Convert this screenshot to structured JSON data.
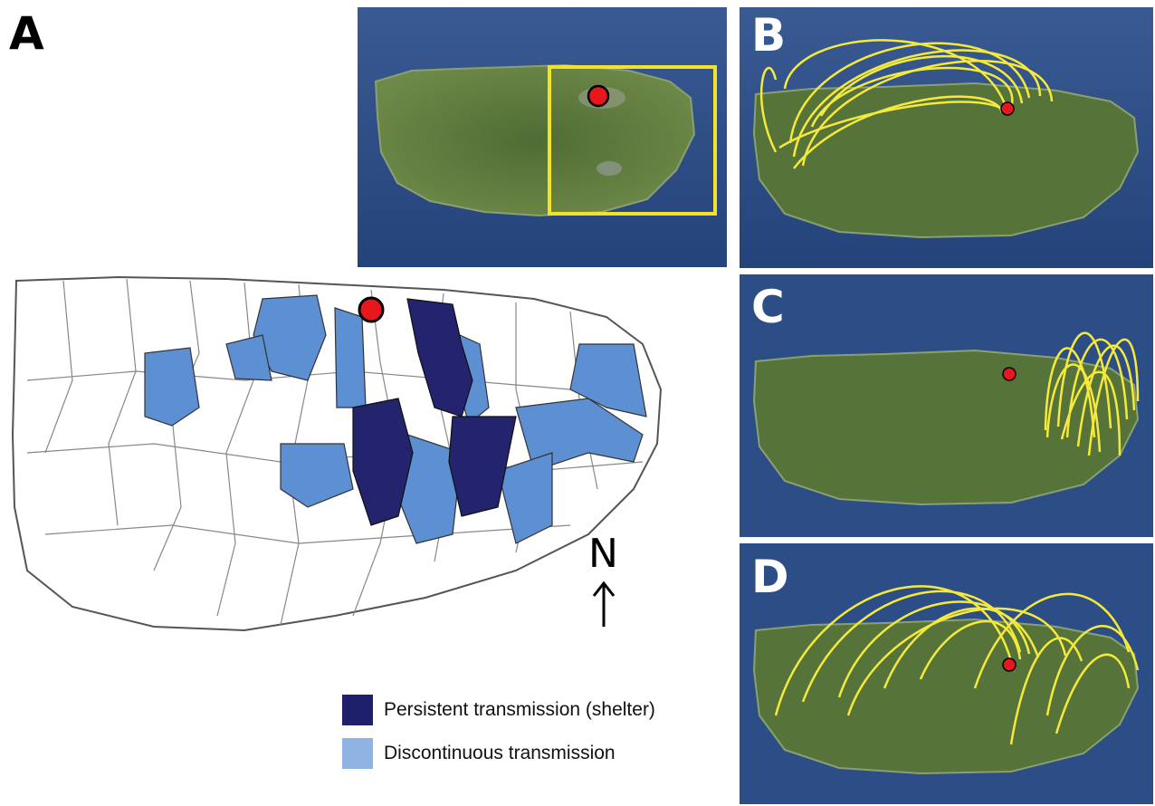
{
  "panels": {
    "a": {
      "letter": "A"
    },
    "b": {
      "letter": "B"
    },
    "c": {
      "letter": "C"
    },
    "d": {
      "letter": "D"
    }
  },
  "north_arrow": {
    "label": "N"
  },
  "legend": {
    "items": [
      {
        "label": "Persistent transmission (shelter)",
        "color": "#1f1f6b"
      },
      {
        "label": "Discontinuous transmission",
        "color": "#8fb3e3"
      }
    ]
  },
  "colors": {
    "ocean": "#2d4d86",
    "land": "#5b7a3c",
    "route": "#f5ea3b",
    "shelter_marker": "#e8171b",
    "inset_box": "#f2e22a",
    "persistent": "#1f1f6b",
    "persistent_fill": "#23236e",
    "discontinuous": "#5d8fd3"
  }
}
